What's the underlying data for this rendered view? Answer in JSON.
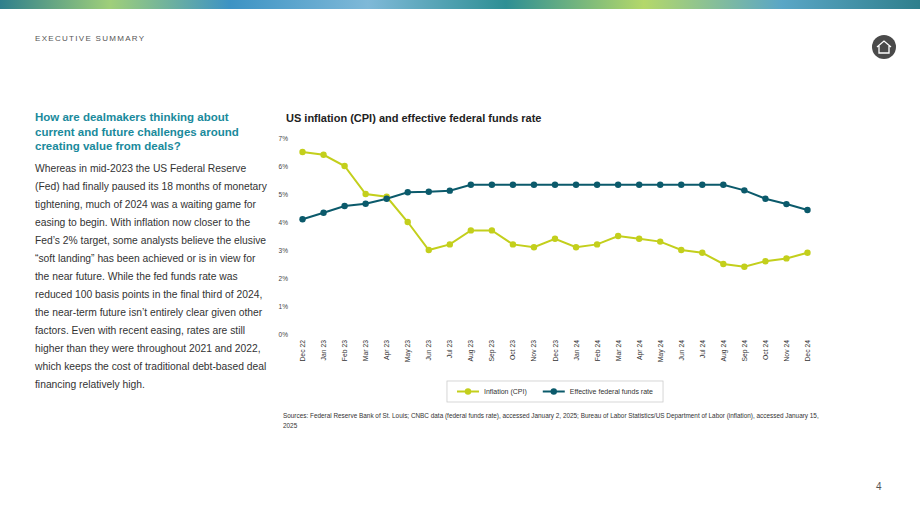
{
  "header": {
    "section": "EXECUTIVE SUMMARY",
    "page_number": "4"
  },
  "sidebar": {
    "question": "How are dealmakers thinking about current and future challenges around creating value from deals?",
    "body": "Whereas in mid-2023 the US Federal Reserve (Fed) had finally paused its 18 months of monetary tightening, much of 2024 was a waiting game for easing to begin. With inflation now closer to the Fed’s 2% target, some analysts believe the elusive “soft landing” has been achieved or is in view for the near future. While the fed funds rate was reduced 100 basis points in the final third of 2024, the near-term future isn’t entirely clear given other factors. Even with recent easing, rates are still higher than they were throughout 2021 and 2022, which keeps the cost of traditional debt-based deal financing relatively high."
  },
  "chart_data": {
    "type": "line",
    "title": "US inflation (CPI) and effective federal funds rate",
    "categories": [
      "Dec 22",
      "Jan 23",
      "Feb 23",
      "Mar 23",
      "Apr 23",
      "May 23",
      "Jun 23",
      "Jul 23",
      "Aug 23",
      "Sep 23",
      "Oct 23",
      "Nov 23",
      "Dec 23",
      "Jan 24",
      "Feb 24",
      "Mar 24",
      "Apr 24",
      "May 24",
      "Jun 24",
      "Jul 24",
      "Aug 24",
      "Sep 24",
      "Oct 24",
      "Nov 24",
      "Dec 24"
    ],
    "series": [
      {
        "name": "Inflation (CPI)",
        "color": "#c3cf1c",
        "marker": "circle",
        "values": [
          6.5,
          6.4,
          6.0,
          5.0,
          4.9,
          4.0,
          3.0,
          3.2,
          3.7,
          3.7,
          3.2,
          3.1,
          3.4,
          3.1,
          3.2,
          3.5,
          3.4,
          3.3,
          3.0,
          2.9,
          2.5,
          2.4,
          2.6,
          2.7,
          2.9
        ]
      },
      {
        "name": "Effective federal funds rate",
        "color": "#0b5a6b",
        "marker": "circle",
        "values": [
          4.1,
          4.33,
          4.57,
          4.65,
          4.83,
          5.06,
          5.08,
          5.12,
          5.33,
          5.33,
          5.33,
          5.33,
          5.33,
          5.33,
          5.33,
          5.33,
          5.33,
          5.33,
          5.33,
          5.33,
          5.33,
          5.13,
          4.83,
          4.64,
          4.43
        ]
      }
    ],
    "ylim": [
      0,
      7
    ],
    "yticks": [
      {
        "value": 0,
        "label": "0%"
      },
      {
        "value": 1,
        "label": "1%"
      },
      {
        "value": 2,
        "label": "2%"
      },
      {
        "value": 3,
        "label": "3%"
      },
      {
        "value": 4,
        "label": "4%"
      },
      {
        "value": 5,
        "label": "5%"
      },
      {
        "value": 6,
        "label": "6%"
      },
      {
        "value": 7,
        "label": "7%"
      }
    ],
    "grid": false,
    "legend": "bottom",
    "source": "Sources: Federal Reserve Bank of St. Louis; CNBC data (federal funds rate), accessed January 2, 2025; Bureau of Labor Statistics/US Department of Labor (inflation), accessed January 15, 2025"
  }
}
